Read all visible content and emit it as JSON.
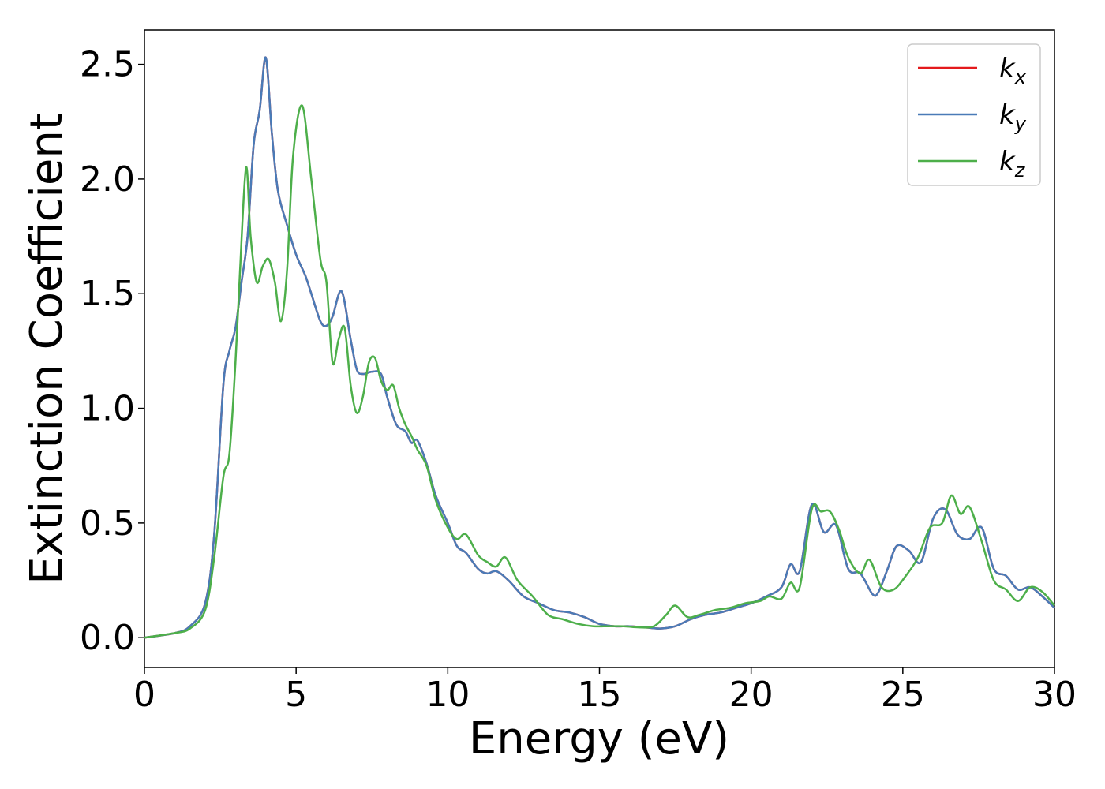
{
  "chart_data": {
    "type": "line",
    "title": "",
    "xlabel": "Energy (eV)",
    "ylabel": "Extinction Coefficient",
    "xlim": [
      0,
      30
    ],
    "ylim": [
      -0.13,
      2.65
    ],
    "xticks": [
      0,
      5,
      10,
      15,
      20,
      25,
      30
    ],
    "xtick_labels": [
      "0",
      "5",
      "10",
      "15",
      "20",
      "25",
      "30"
    ],
    "yticks": [
      0.0,
      0.5,
      1.0,
      1.5,
      2.0,
      2.5
    ],
    "ytick_labels": [
      "0.0",
      "0.5",
      "1.0",
      "1.5",
      "2.0",
      "2.5"
    ],
    "grid": false,
    "legend_position": "top-right",
    "series": [
      {
        "name": "k",
        "subscript": "x",
        "color": "#e41a1c",
        "x": [
          0,
          1,
          1.5,
          2,
          2.3,
          2.6,
          2.8,
          3,
          3.2,
          3.4,
          3.6,
          3.8,
          4,
          4.2,
          4.4,
          4.7,
          5,
          5.3,
          5.5,
          5.8,
          6,
          6.2,
          6.5,
          6.8,
          7,
          7.2,
          7.5,
          7.8,
          8,
          8.3,
          8.6,
          8.8,
          9,
          9.3,
          9.6,
          10,
          10.3,
          10.6,
          11,
          11.3,
          11.6,
          12,
          12.5,
          13,
          13.5,
          14,
          14.5,
          15,
          15.5,
          16,
          16.5,
          17,
          17.5,
          18,
          18.5,
          19,
          19.5,
          20,
          20.5,
          21,
          21.3,
          21.6,
          22,
          22.4,
          22.8,
          23.2,
          23.6,
          24,
          24.2,
          24.5,
          24.8,
          25.2,
          25.6,
          26,
          26.4,
          26.8,
          27.2,
          27.6,
          28,
          28.4,
          28.8,
          29.2,
          29.6,
          30
        ],
        "y": [
          0,
          0.02,
          0.05,
          0.15,
          0.45,
          1.1,
          1.25,
          1.35,
          1.55,
          1.75,
          2.15,
          2.3,
          2.53,
          2.2,
          1.95,
          1.8,
          1.67,
          1.58,
          1.5,
          1.38,
          1.36,
          1.4,
          1.51,
          1.3,
          1.17,
          1.15,
          1.16,
          1.15,
          1.05,
          0.93,
          0.9,
          0.85,
          0.86,
          0.76,
          0.62,
          0.5,
          0.4,
          0.37,
          0.3,
          0.28,
          0.29,
          0.25,
          0.18,
          0.15,
          0.12,
          0.11,
          0.09,
          0.06,
          0.05,
          0.05,
          0.045,
          0.04,
          0.05,
          0.08,
          0.1,
          0.11,
          0.13,
          0.15,
          0.18,
          0.22,
          0.32,
          0.29,
          0.58,
          0.46,
          0.49,
          0.3,
          0.28,
          0.19,
          0.2,
          0.3,
          0.4,
          0.38,
          0.33,
          0.52,
          0.56,
          0.45,
          0.43,
          0.48,
          0.3,
          0.27,
          0.21,
          0.22,
          0.18,
          0.13
        ]
      },
      {
        "name": "k",
        "subscript": "y",
        "color": "#4a7bb7",
        "x": [
          0,
          1,
          1.5,
          2,
          2.3,
          2.6,
          2.8,
          3,
          3.2,
          3.4,
          3.6,
          3.8,
          4,
          4.2,
          4.4,
          4.7,
          5,
          5.3,
          5.5,
          5.8,
          6,
          6.2,
          6.5,
          6.8,
          7,
          7.2,
          7.5,
          7.8,
          8,
          8.3,
          8.6,
          8.8,
          9,
          9.3,
          9.6,
          10,
          10.3,
          10.6,
          11,
          11.3,
          11.6,
          12,
          12.5,
          13,
          13.5,
          14,
          14.5,
          15,
          15.5,
          16,
          16.5,
          17,
          17.5,
          18,
          18.5,
          19,
          19.5,
          20,
          20.5,
          21,
          21.3,
          21.6,
          22,
          22.4,
          22.8,
          23.2,
          23.6,
          24,
          24.2,
          24.5,
          24.8,
          25.2,
          25.6,
          26,
          26.4,
          26.8,
          27.2,
          27.6,
          28,
          28.4,
          28.8,
          29.2,
          29.6,
          30
        ],
        "y": [
          0,
          0.02,
          0.05,
          0.15,
          0.45,
          1.1,
          1.25,
          1.35,
          1.55,
          1.75,
          2.15,
          2.3,
          2.53,
          2.2,
          1.95,
          1.8,
          1.67,
          1.58,
          1.5,
          1.38,
          1.36,
          1.4,
          1.51,
          1.3,
          1.17,
          1.15,
          1.16,
          1.15,
          1.05,
          0.93,
          0.9,
          0.85,
          0.86,
          0.76,
          0.62,
          0.5,
          0.4,
          0.37,
          0.3,
          0.28,
          0.29,
          0.25,
          0.18,
          0.15,
          0.12,
          0.11,
          0.09,
          0.06,
          0.05,
          0.05,
          0.045,
          0.04,
          0.05,
          0.08,
          0.1,
          0.11,
          0.13,
          0.15,
          0.18,
          0.22,
          0.32,
          0.29,
          0.58,
          0.46,
          0.49,
          0.3,
          0.28,
          0.19,
          0.2,
          0.3,
          0.4,
          0.38,
          0.33,
          0.52,
          0.56,
          0.45,
          0.43,
          0.48,
          0.3,
          0.27,
          0.21,
          0.22,
          0.18,
          0.13
        ]
      },
      {
        "name": "k",
        "subscript": "z",
        "color": "#4daf4a",
        "x": [
          0,
          1,
          1.5,
          2,
          2.3,
          2.6,
          2.8,
          3,
          3.15,
          3.35,
          3.5,
          3.7,
          3.9,
          4.1,
          4.3,
          4.5,
          4.7,
          4.9,
          5.2,
          5.5,
          5.8,
          6,
          6.2,
          6.4,
          6.6,
          6.8,
          7,
          7.2,
          7.4,
          7.6,
          7.8,
          8,
          8.2,
          8.4,
          8.6,
          8.8,
          9,
          9.3,
          9.6,
          10,
          10.3,
          10.6,
          11,
          11.3,
          11.6,
          11.9,
          12.3,
          12.8,
          13.3,
          13.8,
          14.3,
          14.8,
          15.3,
          15.8,
          16.3,
          16.8,
          17.2,
          17.5,
          17.9,
          18.3,
          18.8,
          19.3,
          19.8,
          20.3,
          20.6,
          21,
          21.3,
          21.6,
          22,
          22.3,
          22.6,
          22.9,
          23.2,
          23.6,
          23.9,
          24.3,
          24.7,
          25.1,
          25.5,
          25.9,
          26.3,
          26.6,
          26.9,
          27.2,
          27.6,
          28,
          28.4,
          28.8,
          29.2,
          29.6,
          30
        ],
        "y": [
          0,
          0.02,
          0.04,
          0.12,
          0.35,
          0.7,
          0.8,
          1.2,
          1.6,
          2.05,
          1.75,
          1.55,
          1.62,
          1.65,
          1.55,
          1.38,
          1.6,
          2.1,
          2.32,
          2.0,
          1.65,
          1.55,
          1.2,
          1.3,
          1.35,
          1.1,
          0.98,
          1.05,
          1.2,
          1.22,
          1.12,
          1.08,
          1.1,
          1.0,
          0.93,
          0.88,
          0.82,
          0.75,
          0.6,
          0.48,
          0.43,
          0.45,
          0.36,
          0.33,
          0.31,
          0.35,
          0.25,
          0.18,
          0.1,
          0.08,
          0.06,
          0.05,
          0.05,
          0.05,
          0.045,
          0.05,
          0.1,
          0.14,
          0.09,
          0.1,
          0.12,
          0.13,
          0.15,
          0.16,
          0.18,
          0.17,
          0.24,
          0.22,
          0.56,
          0.55,
          0.55,
          0.47,
          0.35,
          0.28,
          0.34,
          0.22,
          0.21,
          0.27,
          0.35,
          0.48,
          0.5,
          0.62,
          0.54,
          0.57,
          0.42,
          0.25,
          0.21,
          0.16,
          0.22,
          0.2,
          0.14
        ]
      }
    ]
  }
}
